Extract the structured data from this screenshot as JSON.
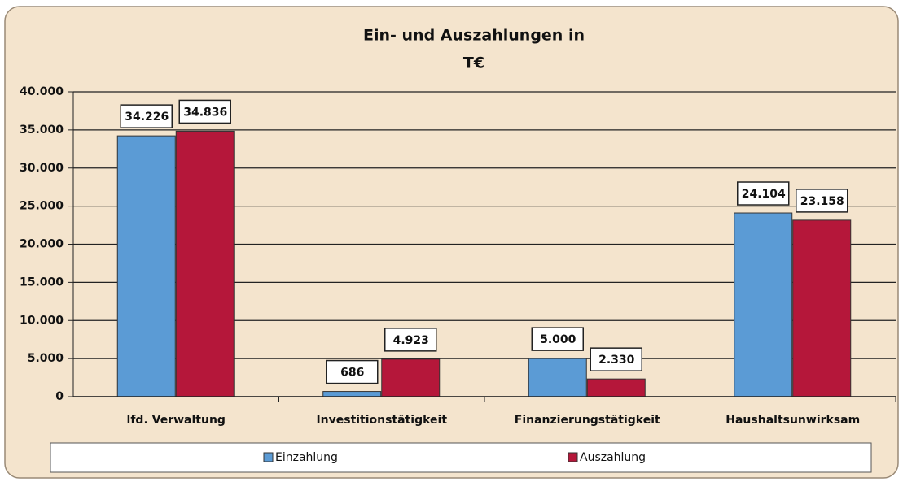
{
  "chart_data": {
    "type": "bar",
    "title": [
      "Ein- und Auszahlungen in",
      "T€"
    ],
    "categories": [
      "lfd. Verwaltung",
      "Investitionstätigkeit",
      "Finanzierungstätigkeit",
      "Haushaltsunwirksam"
    ],
    "series": [
      {
        "name": "Einzahlung",
        "color": "#5b9bd5",
        "values": [
          34226,
          686,
          5000,
          24104
        ],
        "value_labels": [
          "34.226",
          "686",
          "5.000",
          "24.104"
        ]
      },
      {
        "name": "Auszahlung",
        "color": "#b5173a",
        "values": [
          34836,
          4923,
          2330,
          23158
        ],
        "value_labels": [
          "34.836",
          "4.923",
          "2.330",
          "23.158"
        ]
      }
    ],
    "ylim": [
      0,
      40000
    ],
    "yticks": [
      0,
      {
        "value": 5000,
        "label": "5.000"
      },
      {
        "value": 10000,
        "label": "10.000"
      },
      {
        "value": 15000,
        "label": "15.000"
      },
      {
        "value": 20000,
        "label": "20.000"
      },
      {
        "value": 25000,
        "label": "25.000"
      },
      {
        "value": 30000,
        "label": "30.000"
      },
      {
        "value": 35000,
        "label": "35.000"
      },
      {
        "value": 40000,
        "label": "40.000"
      }
    ],
    "grid": true,
    "legend": "bottom"
  }
}
